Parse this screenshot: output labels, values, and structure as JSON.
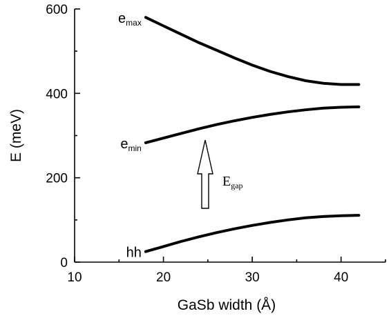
{
  "chart_data": {
    "type": "line",
    "title": "",
    "xlabel": "GaSb width (Å)",
    "ylabel": "E (meV)",
    "xlim": [
      10,
      45
    ],
    "ylim": [
      0,
      600
    ],
    "xticks": [
      10,
      20,
      30,
      40
    ],
    "yticks": [
      0,
      200,
      400,
      600
    ],
    "grid": false,
    "series": [
      {
        "key": "emax",
        "label_main": "e",
        "label_sub": "max",
        "x": [
          18,
          20,
          22,
          24,
          26,
          28,
          30,
          32,
          34,
          36,
          38,
          40,
          42
        ],
        "y": [
          580,
          560,
          540,
          520,
          502,
          484,
          467,
          452,
          440,
          430,
          424,
          421,
          421
        ]
      },
      {
        "key": "emin",
        "label_main": "e",
        "label_sub": "min",
        "x": [
          18,
          20,
          22,
          24,
          26,
          28,
          30,
          32,
          34,
          36,
          38,
          40,
          42
        ],
        "y": [
          283,
          294,
          305,
          316,
          326,
          335,
          343,
          350,
          356,
          361,
          365,
          367,
          368
        ]
      },
      {
        "key": "hh",
        "label_main": "hh",
        "label_sub": "",
        "x": [
          18,
          20,
          22,
          24,
          26,
          28,
          30,
          32,
          34,
          36,
          38,
          40,
          42
        ],
        "y": [
          25,
          37,
          49,
          60,
          70,
          79,
          87,
          94,
          100,
          105,
          108,
          110,
          111
        ]
      }
    ],
    "annotations": {
      "gap_label_main": "E",
      "gap_label_sub": "gap"
    }
  }
}
